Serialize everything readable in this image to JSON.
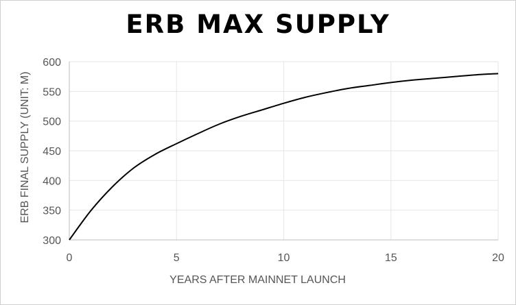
{
  "chart_data": {
    "type": "line",
    "title": "ERB MAX SUPPLY",
    "xlabel": "YEARS AFTER MAINNET LAUNCH",
    "ylabel": "ERB FINAL SUPPLY  (UNIT:  M)",
    "xlim": [
      0,
      20
    ],
    "ylim": [
      300,
      600
    ],
    "xticks": [
      0,
      5,
      10,
      15,
      20
    ],
    "yticks": [
      300,
      350,
      400,
      450,
      500,
      550,
      600
    ],
    "grid": true,
    "series": [
      {
        "color": "#000000",
        "x": [
          0,
          1,
          2,
          3,
          4,
          5,
          6,
          7,
          8,
          9,
          10,
          11,
          12,
          13,
          14,
          15,
          16,
          17,
          18,
          19,
          20
        ],
        "y": [
          300,
          349,
          389,
          421,
          444,
          462,
          479,
          495,
          508,
          519,
          530,
          540,
          548,
          555,
          560,
          565,
          569,
          572,
          575,
          578,
          580
        ]
      }
    ]
  }
}
